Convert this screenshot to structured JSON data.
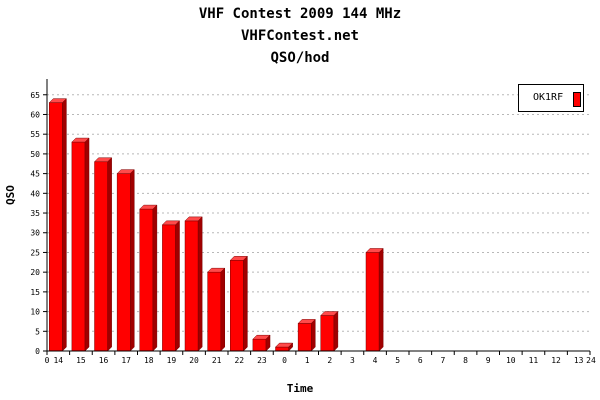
{
  "chart_data": {
    "type": "bar",
    "title": "VHF Contest 2009 144 MHz",
    "subtitle": "VHFContest.net",
    "subtitle2": "QSO/hod",
    "xlabel": "Time",
    "ylabel": "QSO",
    "ylim": [
      0,
      69
    ],
    "yticks": [
      0,
      5,
      10,
      15,
      20,
      25,
      30,
      35,
      40,
      45,
      50,
      55,
      60,
      65
    ],
    "grid": true,
    "legend_position": "top-right",
    "axis_start_label": "0",
    "axis_end_label": "24",
    "categories": [
      "14",
      "15",
      "16",
      "17",
      "18",
      "19",
      "20",
      "21",
      "22",
      "23",
      "0",
      "1",
      "2",
      "3",
      "4",
      "5",
      "6",
      "7",
      "8",
      "9",
      "10",
      "11",
      "12",
      "13"
    ],
    "series": [
      {
        "name": "OK1RF",
        "color": "#ff0000",
        "values": [
          63,
          53,
          48,
          45,
          36,
          32,
          33,
          20,
          23,
          3,
          1,
          7,
          9,
          0,
          25,
          0,
          0,
          0,
          0,
          0,
          0,
          0,
          0,
          0
        ]
      }
    ]
  }
}
